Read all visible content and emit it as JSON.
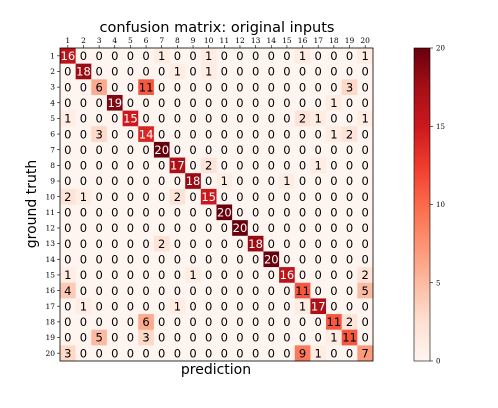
{
  "chart_data": {
    "type": "heatmap",
    "title": "confusion matrix: original inputs",
    "xlabel": "prediction",
    "ylabel": "ground truth",
    "x_tick_labels": [
      "1",
      "2",
      "3",
      "4",
      "5",
      "6",
      "7",
      "8",
      "9",
      "10",
      "11",
      "12",
      "13",
      "14",
      "15",
      "16",
      "17",
      "18",
      "19",
      "20"
    ],
    "y_tick_labels": [
      "1",
      "2",
      "3",
      "4",
      "5",
      "6",
      "7",
      "8",
      "9",
      "10",
      "11",
      "12",
      "13",
      "14",
      "15",
      "16",
      "17",
      "18",
      "19",
      "20"
    ],
    "x_ticks_position": "top",
    "colormap": "Reds",
    "colorbar": {
      "range": [
        0,
        20
      ],
      "ticks": [
        0,
        5,
        10,
        15,
        20
      ],
      "tick_labels": [
        "0",
        "5",
        "10",
        "15",
        "20"
      ]
    },
    "matrix": [
      [
        16,
        0,
        0,
        0,
        0,
        0,
        1,
        0,
        0,
        1,
        0,
        0,
        0,
        0,
        0,
        1,
        0,
        0,
        0,
        1
      ],
      [
        0,
        18,
        0,
        0,
        0,
        0,
        0,
        1,
        0,
        1,
        0,
        0,
        0,
        0,
        0,
        0,
        0,
        0,
        0,
        0
      ],
      [
        0,
        0,
        6,
        0,
        0,
        11,
        0,
        0,
        0,
        0,
        0,
        0,
        0,
        0,
        0,
        0,
        0,
        0,
        3,
        0
      ],
      [
        0,
        0,
        0,
        19,
        0,
        0,
        0,
        0,
        0,
        0,
        0,
        0,
        0,
        0,
        0,
        0,
        0,
        1,
        0,
        0
      ],
      [
        1,
        0,
        0,
        0,
        15,
        0,
        0,
        0,
        0,
        0,
        0,
        0,
        0,
        0,
        0,
        2,
        1,
        0,
        0,
        1
      ],
      [
        0,
        0,
        3,
        0,
        0,
        14,
        0,
        0,
        0,
        0,
        0,
        0,
        0,
        0,
        0,
        0,
        0,
        1,
        2,
        0
      ],
      [
        0,
        0,
        0,
        0,
        0,
        0,
        20,
        0,
        0,
        0,
        0,
        0,
        0,
        0,
        0,
        0,
        0,
        0,
        0,
        0
      ],
      [
        0,
        0,
        0,
        0,
        0,
        0,
        0,
        17,
        0,
        2,
        0,
        0,
        0,
        0,
        0,
        0,
        1,
        0,
        0,
        0
      ],
      [
        0,
        0,
        0,
        0,
        0,
        0,
        0,
        0,
        18,
        0,
        1,
        0,
        0,
        0,
        1,
        0,
        0,
        0,
        0,
        0
      ],
      [
        2,
        1,
        0,
        0,
        0,
        0,
        0,
        2,
        0,
        15,
        0,
        0,
        0,
        0,
        0,
        0,
        0,
        0,
        0,
        0
      ],
      [
        0,
        0,
        0,
        0,
        0,
        0,
        0,
        0,
        0,
        0,
        20,
        0,
        0,
        0,
        0,
        0,
        0,
        0,
        0,
        0
      ],
      [
        0,
        0,
        0,
        0,
        0,
        0,
        0,
        0,
        0,
        0,
        0,
        20,
        0,
        0,
        0,
        0,
        0,
        0,
        0,
        0
      ],
      [
        0,
        0,
        0,
        0,
        0,
        0,
        2,
        0,
        0,
        0,
        0,
        0,
        18,
        0,
        0,
        0,
        0,
        0,
        0,
        0
      ],
      [
        0,
        0,
        0,
        0,
        0,
        0,
        0,
        0,
        0,
        0,
        0,
        0,
        0,
        20,
        0,
        0,
        0,
        0,
        0,
        0
      ],
      [
        1,
        0,
        0,
        0,
        0,
        0,
        0,
        0,
        1,
        0,
        0,
        0,
        0,
        0,
        16,
        0,
        0,
        0,
        0,
        2
      ],
      [
        4,
        0,
        0,
        0,
        0,
        0,
        0,
        0,
        0,
        0,
        0,
        0,
        0,
        0,
        0,
        11,
        0,
        0,
        0,
        5
      ],
      [
        0,
        1,
        0,
        0,
        0,
        0,
        0,
        1,
        0,
        0,
        0,
        0,
        0,
        0,
        0,
        1,
        17,
        0,
        0,
        0
      ],
      [
        0,
        0,
        0,
        0,
        0,
        6,
        0,
        0,
        0,
        0,
        0,
        0,
        0,
        0,
        0,
        0,
        0,
        11,
        2,
        0
      ],
      [
        0,
        0,
        5,
        0,
        0,
        3,
        0,
        0,
        0,
        0,
        0,
        0,
        0,
        0,
        0,
        0,
        0,
        1,
        11,
        0
      ],
      [
        3,
        0,
        0,
        0,
        0,
        0,
        0,
        0,
        0,
        0,
        0,
        0,
        0,
        0,
        0,
        9,
        1,
        0,
        0,
        7
      ]
    ]
  }
}
